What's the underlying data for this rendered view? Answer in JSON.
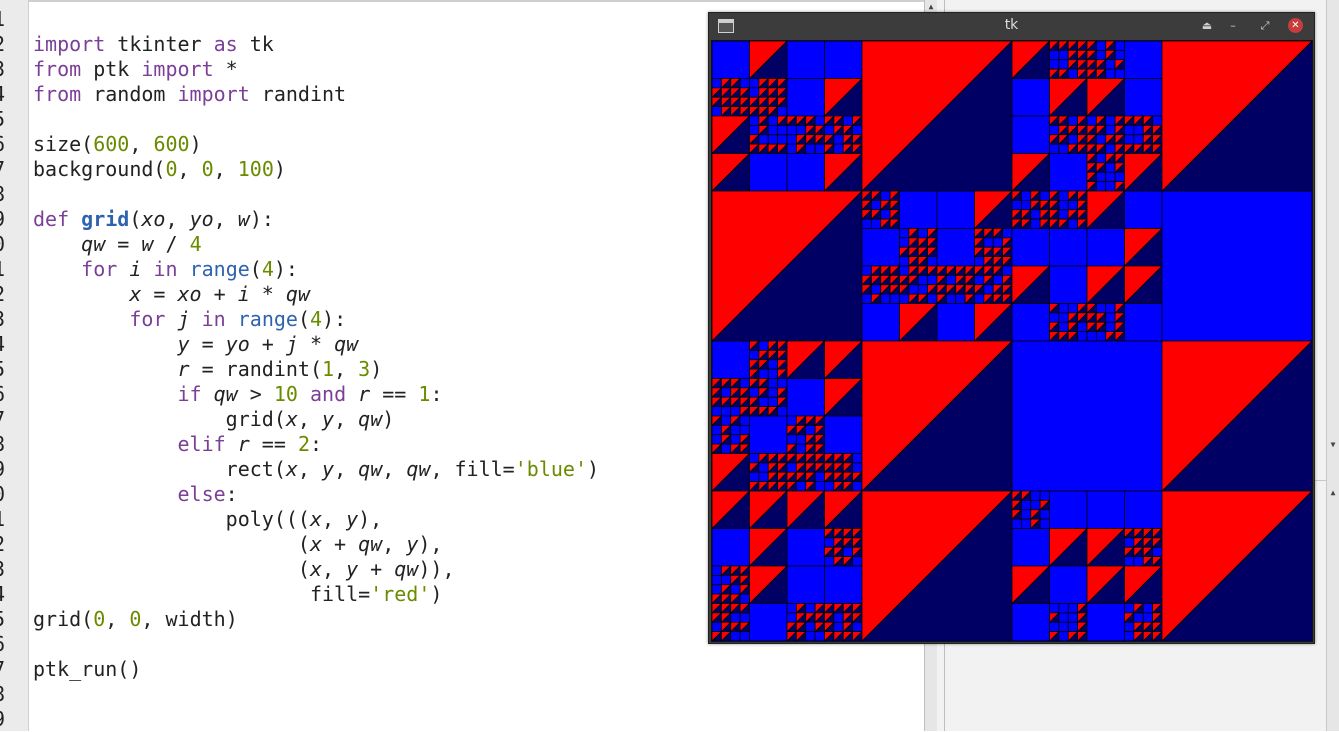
{
  "editor": {
    "line_numbers": [
      "1",
      "2",
      "3",
      "4",
      "5",
      "6",
      "7",
      "8",
      "9",
      "0",
      "1",
      "2",
      "3",
      "4",
      "5",
      "6",
      "7",
      "8",
      "9",
      "0",
      "1",
      "2",
      "3",
      "4",
      "5",
      "6",
      "7",
      "8",
      "9"
    ],
    "code_lines": [
      "",
      "import tkinter as tk",
      "from ptk import *",
      "from random import randint",
      "",
      "size(600, 600)",
      "background(0, 0, 100)",
      "",
      "def grid(xo, yo, w):",
      "    qw = w / 4",
      "    for i in range(4):",
      "        x = xo + i * qw",
      "        for j in range(4):",
      "            y = yo + j * qw",
      "            r = randint(1, 3)",
      "            if qw > 10 and r == 1:",
      "                grid(x, y, qw)",
      "            elif r == 2:",
      "                rect(x, y, qw, qw, fill='blue')",
      "            else:",
      "                poly(((x, y),",
      "                      (x + qw, y),",
      "                      (x, y + qw)),",
      "                       fill='red')",
      "grid(0, 0, width)",
      "",
      "ptk_run()",
      "",
      ""
    ]
  },
  "tk_window": {
    "title": "tk",
    "buttons": {
      "shade": "⏏",
      "minimize": "–",
      "maximize": "⤢",
      "close": "✕"
    }
  },
  "colors": {
    "background": "#000064",
    "rect_fill": "#0000ff",
    "tri_fill": "#ff0000"
  },
  "canvas_data": {
    "size": [
      600,
      600
    ],
    "pattern": "recursive 4x4 grid; each cell is red triangle, blue square, or subdivided"
  }
}
